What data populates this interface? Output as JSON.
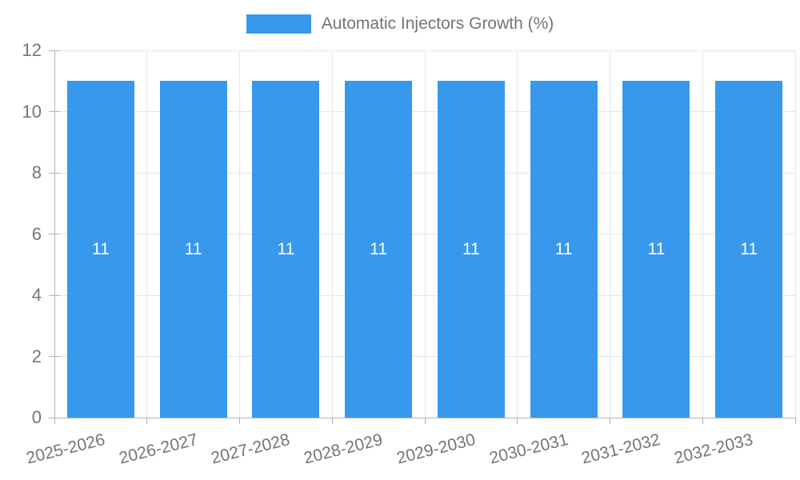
{
  "chart_data": {
    "type": "bar",
    "title": "Automatic Injectors Growth (%)",
    "categories": [
      "2025-2026",
      "2026-2027",
      "2027-2028",
      "2028-2029",
      "2029-2030",
      "2030-2031",
      "2031-2032",
      "2032-2033"
    ],
    "values": [
      11,
      11,
      11,
      11,
      11,
      11,
      11,
      11
    ],
    "xlabel": "",
    "ylabel": "",
    "ylim": [
      0,
      12
    ],
    "yticks": [
      0,
      2,
      4,
      6,
      8,
      10,
      12
    ],
    "grid": true,
    "legend_position": "top",
    "bar_color": "#3899ec",
    "bar_label_color": "#ffffff",
    "axis_color": "#b3b3b3",
    "gridline_color": "#e6e6e6",
    "tick_text_color": "#757575"
  }
}
